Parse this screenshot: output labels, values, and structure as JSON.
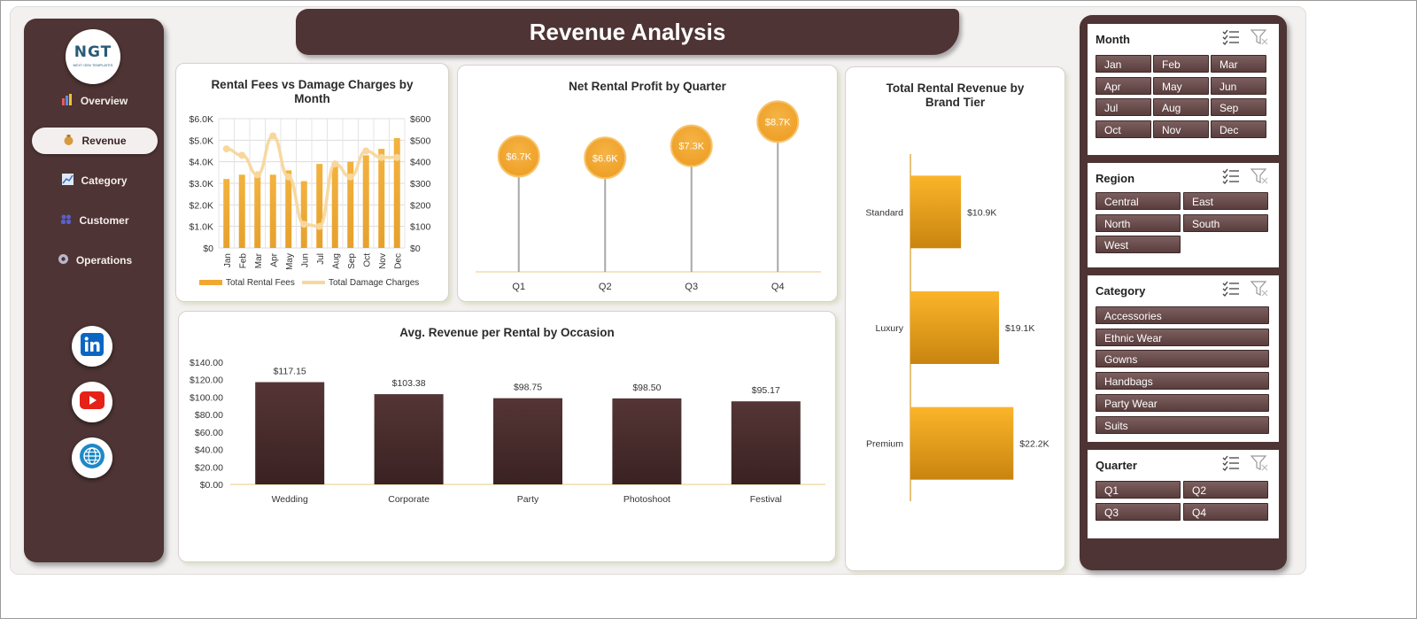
{
  "nav": {
    "logo": {
      "text": "NGT",
      "subtitle": "NEXT GEN TEMPLATES"
    },
    "items": [
      {
        "label": "Overview",
        "active": false,
        "icon": "bar-chart-icon"
      },
      {
        "label": "Revenue",
        "active": true,
        "icon": "money-bag-icon"
      },
      {
        "label": "Category",
        "active": false,
        "icon": "line-chart-icon"
      },
      {
        "label": "Customer",
        "active": false,
        "icon": "people-icon"
      },
      {
        "label": "Operations",
        "active": false,
        "icon": "gear-icon"
      }
    ],
    "social": [
      "linkedin-icon",
      "youtube-icon",
      "globe-icon"
    ]
  },
  "header": {
    "title": "Revenue Analysis"
  },
  "charts": {
    "fees_vs_damage": {
      "title": "Rental Fees vs Damage Charges by Month",
      "legend": [
        "Total Rental Fees",
        "Total Damage Charges"
      ]
    },
    "net_profit": {
      "title": "Net Rental Profit by Quarter"
    },
    "brand_tier": {
      "title": "Total Rental Revenue by Brand Tier"
    },
    "occasion": {
      "title": "Avg. Revenue per Rental by Occasion"
    }
  },
  "chart_data": [
    {
      "type": "bar",
      "title": "Rental Fees vs Damage Charges by Month",
      "categories": [
        "Jan",
        "Feb",
        "Mar",
        "Apr",
        "May",
        "Jun",
        "Jul",
        "Aug",
        "Sep",
        "Oct",
        "Nov",
        "Dec"
      ],
      "y_ticks": [
        "$6.0K",
        "$5.0K",
        "$4.0K",
        "$3.0K",
        "$2.0K",
        "$1.0K",
        "$0"
      ],
      "y2_ticks": [
        "$600",
        "$500",
        "$400",
        "$300",
        "$200",
        "$100",
        "$0"
      ],
      "ylim": [
        0,
        6000
      ],
      "y2lim": [
        0,
        600
      ],
      "series": [
        {
          "name": "Total Rental Fees",
          "type": "bar",
          "values": [
            3200,
            3400,
            3300,
            3400,
            3600,
            3100,
            3900,
            3900,
            4000,
            4300,
            4600,
            5100
          ]
        },
        {
          "name": "Total Damage Charges",
          "type": "line",
          "axis": "secondary",
          "values": [
            460,
            430,
            340,
            520,
            330,
            110,
            100,
            390,
            330,
            450,
            420,
            420
          ]
        }
      ],
      "grid": true,
      "legend_position": "bottom"
    },
    {
      "type": "scatter",
      "subtype": "lollipop",
      "title": "Net Rental Profit by Quarter",
      "categories": [
        "Q1",
        "Q2",
        "Q3",
        "Q4"
      ],
      "values": [
        6700,
        6600,
        7300,
        8700
      ],
      "labels": [
        "$6.7K",
        "$6.6K",
        "$7.3K",
        "$8.7K"
      ],
      "ylim": [
        0,
        10000
      ]
    },
    {
      "type": "bar",
      "orientation": "horizontal",
      "title": "Total Rental Revenue by Brand Tier",
      "categories": [
        "Standard",
        "Luxury",
        "Premium"
      ],
      "values": [
        10900,
        19100,
        22200
      ],
      "labels": [
        "$10.9K",
        "$19.1K",
        "$22.2K"
      ],
      "xlim": [
        0,
        40000
      ]
    },
    {
      "type": "bar",
      "title": "Avg. Revenue per Rental by Occasion",
      "categories": [
        "Wedding",
        "Corporate",
        "Party",
        "Photoshoot",
        "Festival"
      ],
      "values": [
        117.15,
        103.38,
        98.75,
        98.5,
        95.17
      ],
      "labels": [
        "$117.15",
        "$103.38",
        "$98.75",
        "$98.50",
        "$95.17"
      ],
      "y_ticks": [
        "$140.00",
        "$120.00",
        "$100.00",
        "$80.00",
        "$60.00",
        "$40.00",
        "$20.00",
        "$0.00"
      ],
      "ylim": [
        0,
        140
      ]
    }
  ],
  "slicers": [
    {
      "title": "Month",
      "options": [
        "Jan",
        "Feb",
        "Mar",
        "Apr",
        "May",
        "Jun",
        "Jul",
        "Aug",
        "Sep",
        "Oct",
        "Nov",
        "Dec"
      ],
      "columns": 3
    },
    {
      "title": "Region",
      "options": [
        "Central",
        "East",
        "North",
        "South",
        "West"
      ],
      "columns": 2
    },
    {
      "title": "Category",
      "options": [
        "Accessories",
        "Ethnic Wear",
        "Gowns",
        "Handbags",
        "Party Wear",
        "Suits"
      ],
      "columns": 1
    },
    {
      "title": "Quarter",
      "options": [
        "Q1",
        "Q2",
        "Q3",
        "Q4"
      ],
      "columns": 2
    }
  ],
  "colors": {
    "brown": "#4e3434",
    "gold": "#f1a830",
    "gold_light": "#f7d79c",
    "bar_dark": "#4a2e2e"
  }
}
